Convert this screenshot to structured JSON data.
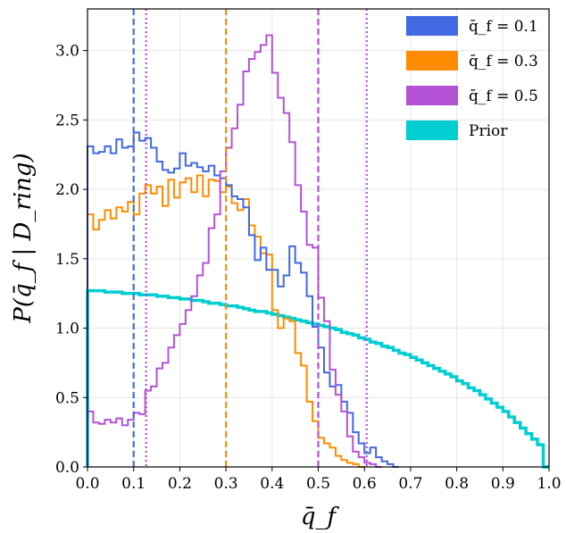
{
  "chart_data": {
    "type": "histogram",
    "xlabel": "q̄_f",
    "ylabel": "P(q̄_f | D_ring)",
    "xlim": [
      0.0,
      1.0
    ],
    "ylim": [
      0.0,
      3.3
    ],
    "x_ticks": [
      "0.0",
      "0.1",
      "0.2",
      "0.3",
      "0.4",
      "0.5",
      "0.6",
      "0.7",
      "0.8",
      "0.9",
      "1.0"
    ],
    "y_ticks": [
      "0.0",
      "0.5",
      "1.0",
      "1.5",
      "2.0",
      "2.5",
      "3.0"
    ],
    "grid": true,
    "legend_position": "top-right",
    "bin_width": 0.0125,
    "series": [
      {
        "name": "q̄_f = 0.1",
        "color": "#4169e1",
        "values": [
          2.31,
          2.26,
          2.27,
          2.31,
          2.26,
          2.36,
          2.3,
          2.31,
          2.41,
          2.35,
          2.37,
          2.3,
          2.2,
          2.14,
          2.12,
          2.15,
          2.26,
          2.17,
          2.19,
          2.16,
          2.13,
          2.17,
          2.1,
          2.08,
          2.03,
          1.95,
          1.93,
          1.87,
          1.67,
          1.49,
          1.58,
          1.42,
          1.42,
          1.3,
          1.38,
          1.59,
          1.47,
          1.4,
          1.23,
          1.01,
          0.86,
          0.68,
          0.58,
          0.59,
          0.47,
          0.39,
          0.25,
          0.17,
          0.1,
          0.14,
          0.07,
          0.04,
          0.02,
          0.0
        ]
      },
      {
        "name": "q̄_f = 0.3",
        "color": "#ff8c00",
        "values": [
          1.82,
          1.71,
          1.78,
          1.85,
          1.79,
          1.87,
          1.84,
          1.91,
          1.82,
          1.97,
          2.03,
          1.97,
          2.02,
          1.88,
          2.07,
          1.94,
          2.05,
          2.08,
          1.98,
          2.1,
          1.95,
          2.07,
          2.06,
          1.98,
          2.02,
          1.9,
          1.85,
          1.93,
          1.74,
          1.66,
          1.54,
          1.53,
          1.13,
          1.0,
          1.07,
          1.05,
          0.82,
          0.73,
          0.47,
          0.33,
          0.21,
          0.17,
          0.14,
          0.08,
          0.05,
          0.03,
          0.02,
          0.0
        ]
      },
      {
        "name": "q̄_f = 0.5",
        "color": "#b452d6",
        "values": [
          0.4,
          0.32,
          0.31,
          0.34,
          0.32,
          0.35,
          0.3,
          0.34,
          0.39,
          0.38,
          0.55,
          0.58,
          0.71,
          0.75,
          0.86,
          0.95,
          1.03,
          1.13,
          1.23,
          1.38,
          1.47,
          1.72,
          1.82,
          2.13,
          2.3,
          2.44,
          2.61,
          2.85,
          2.94,
          2.99,
          3.04,
          3.11,
          2.84,
          2.66,
          2.55,
          2.34,
          2.03,
          1.84,
          1.6,
          1.58,
          1.22,
          1.05,
          0.7,
          0.52,
          0.4,
          0.22,
          0.11,
          0.07,
          0.03,
          0.02,
          0.0
        ]
      },
      {
        "name": "Prior",
        "color": "#00ced1",
        "values": [
          1.27,
          1.27,
          1.27,
          1.26,
          1.26,
          1.26,
          1.25,
          1.25,
          1.25,
          1.24,
          1.24,
          1.24,
          1.23,
          1.23,
          1.22,
          1.22,
          1.21,
          1.21,
          1.2,
          1.2,
          1.19,
          1.18,
          1.18,
          1.17,
          1.16,
          1.16,
          1.15,
          1.14,
          1.13,
          1.12,
          1.12,
          1.11,
          1.1,
          1.09,
          1.08,
          1.07,
          1.06,
          1.05,
          1.04,
          1.03,
          1.02,
          1.01,
          1.0,
          0.99,
          0.97,
          0.96,
          0.95,
          0.93,
          0.92,
          0.9,
          0.89,
          0.87,
          0.86,
          0.84,
          0.82,
          0.81,
          0.79,
          0.77,
          0.75,
          0.73,
          0.71,
          0.69,
          0.67,
          0.65,
          0.62,
          0.6,
          0.57,
          0.55,
          0.52,
          0.49,
          0.46,
          0.43,
          0.4,
          0.36,
          0.32,
          0.28,
          0.24,
          0.2,
          0.16,
          0.0
        ]
      }
    ],
    "vlines": [
      {
        "x": 0.1,
        "color": "#4169e1",
        "style": "dashed"
      },
      {
        "x": 0.3,
        "color": "#ff8c00",
        "style": "dashed"
      },
      {
        "x": 0.5,
        "color": "#b452d6",
        "style": "dashed"
      },
      {
        "x": 0.127,
        "color": "#b452d6",
        "style": "dotted"
      },
      {
        "x": 0.605,
        "color": "#b452d6",
        "style": "dotted"
      }
    ]
  }
}
